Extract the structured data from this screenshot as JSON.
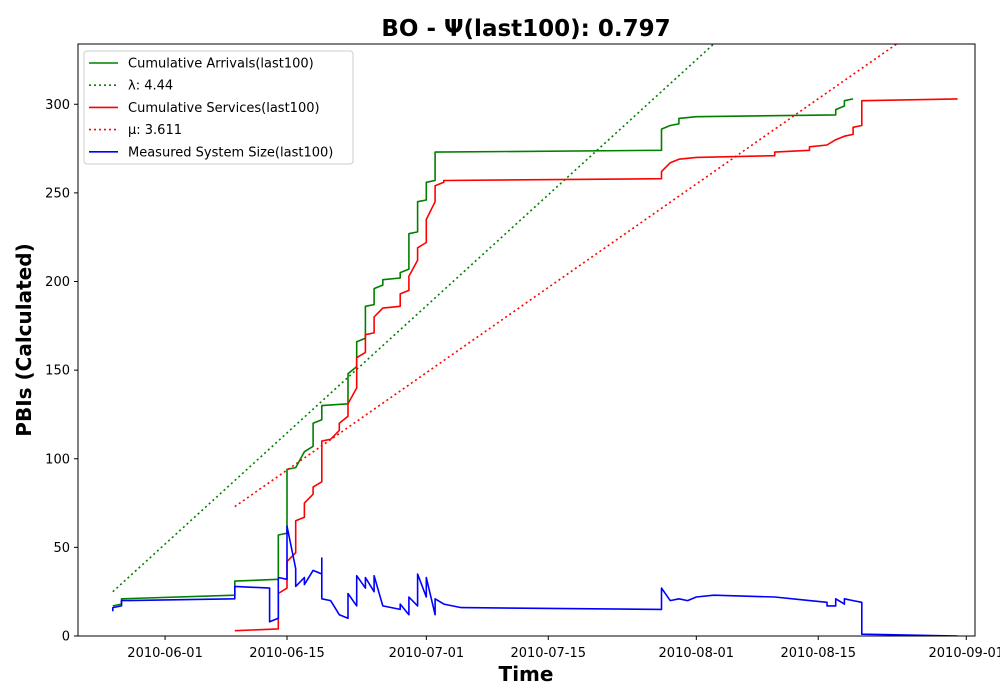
{
  "chart_data": {
    "type": "line",
    "title": "BO -  Ψ(last100): 0.797",
    "xlabel": "Time",
    "ylabel": "PBIs (Calculated)",
    "xlim": [
      "2010-05-22",
      "2010-09-02"
    ],
    "ylim": [
      0,
      334
    ],
    "x_ticks": [
      "2010-06-01",
      "2010-06-15",
      "2010-07-01",
      "2010-07-15",
      "2010-08-01",
      "2010-08-15",
      "2010-09-01"
    ],
    "y_ticks": [
      0,
      50,
      100,
      150,
      200,
      250,
      300
    ],
    "grid": false,
    "legend_position": "top-left",
    "series": [
      {
        "name": "Cumulative Arrivals(last100)",
        "color": "#008000",
        "style": "solid",
        "points": [
          [
            "2010-05-26",
            17
          ],
          [
            "2010-05-27",
            18
          ],
          [
            "2010-05-27",
            21
          ],
          [
            "2010-06-09",
            23
          ],
          [
            "2010-06-09",
            31
          ],
          [
            "2010-06-14",
            32
          ],
          [
            "2010-06-14",
            57
          ],
          [
            "2010-06-15",
            58
          ],
          [
            "2010-06-15",
            94
          ],
          [
            "2010-06-16",
            95
          ],
          [
            "2010-06-17",
            104
          ],
          [
            "2010-06-18",
            107
          ],
          [
            "2010-06-18",
            120
          ],
          [
            "2010-06-19",
            122
          ],
          [
            "2010-06-19",
            130
          ],
          [
            "2010-06-22",
            131
          ],
          [
            "2010-06-22",
            148
          ],
          [
            "2010-06-23",
            152
          ],
          [
            "2010-06-23",
            166
          ],
          [
            "2010-06-24",
            168
          ],
          [
            "2010-06-24",
            186
          ],
          [
            "2010-06-25",
            187
          ],
          [
            "2010-06-25",
            196
          ],
          [
            "2010-06-26",
            198
          ],
          [
            "2010-06-26",
            201
          ],
          [
            "2010-06-28",
            202
          ],
          [
            "2010-06-28",
            205
          ],
          [
            "2010-06-29",
            207
          ],
          [
            "2010-06-29",
            227
          ],
          [
            "2010-06-30",
            228
          ],
          [
            "2010-06-30",
            245
          ],
          [
            "2010-07-01",
            246
          ],
          [
            "2010-07-01",
            256
          ],
          [
            "2010-07-02",
            257
          ],
          [
            "2010-07-02",
            273
          ],
          [
            "2010-07-28",
            274
          ],
          [
            "2010-07-28",
            286
          ],
          [
            "2010-07-29",
            288
          ],
          [
            "2010-07-30",
            289
          ],
          [
            "2010-07-30",
            292
          ],
          [
            "2010-08-01",
            293
          ],
          [
            "2010-08-17",
            294
          ],
          [
            "2010-08-17",
            297
          ],
          [
            "2010-08-18",
            299
          ],
          [
            "2010-08-18",
            302
          ],
          [
            "2010-08-19",
            303
          ]
        ]
      },
      {
        "name": "λ: 4.44",
        "color": "#008000",
        "style": "dotted",
        "points": [
          [
            "2010-05-26",
            25
          ],
          [
            "2010-08-03",
            334
          ]
        ]
      },
      {
        "name": "Cumulative Services(last100)",
        "color": "#ff0000",
        "style": "solid",
        "points": [
          [
            "2010-06-09",
            3
          ],
          [
            "2010-06-14",
            4
          ],
          [
            "2010-06-14",
            24
          ],
          [
            "2010-06-15",
            27
          ],
          [
            "2010-06-15",
            42
          ],
          [
            "2010-06-16",
            47
          ],
          [
            "2010-06-16",
            65
          ],
          [
            "2010-06-17",
            67
          ],
          [
            "2010-06-17",
            75
          ],
          [
            "2010-06-18",
            80
          ],
          [
            "2010-06-18",
            84
          ],
          [
            "2010-06-19",
            87
          ],
          [
            "2010-06-19",
            110
          ],
          [
            "2010-06-20",
            111
          ],
          [
            "2010-06-21",
            116
          ],
          [
            "2010-06-21",
            120
          ],
          [
            "2010-06-22",
            124
          ],
          [
            "2010-06-22",
            131
          ],
          [
            "2010-06-23",
            140
          ],
          [
            "2010-06-23",
            157
          ],
          [
            "2010-06-24",
            160
          ],
          [
            "2010-06-24",
            170
          ],
          [
            "2010-06-25",
            171
          ],
          [
            "2010-06-25",
            180
          ],
          [
            "2010-06-26",
            185
          ],
          [
            "2010-06-28",
            186
          ],
          [
            "2010-06-28",
            193
          ],
          [
            "2010-06-29",
            195
          ],
          [
            "2010-06-29",
            203
          ],
          [
            "2010-06-30",
            212
          ],
          [
            "2010-06-30",
            219
          ],
          [
            "2010-07-01",
            222
          ],
          [
            "2010-07-01",
            235
          ],
          [
            "2010-07-02",
            245
          ],
          [
            "2010-07-02",
            254
          ],
          [
            "2010-07-03",
            256
          ],
          [
            "2010-07-03",
            257
          ],
          [
            "2010-07-28",
            258
          ],
          [
            "2010-07-28",
            262
          ],
          [
            "2010-07-29",
            267
          ],
          [
            "2010-07-30",
            269
          ],
          [
            "2010-08-01",
            270
          ],
          [
            "2010-08-10",
            271
          ],
          [
            "2010-08-10",
            273
          ],
          [
            "2010-08-14",
            274
          ],
          [
            "2010-08-14",
            276
          ],
          [
            "2010-08-16",
            277
          ],
          [
            "2010-08-17",
            280
          ],
          [
            "2010-08-18",
            282
          ],
          [
            "2010-08-19",
            283
          ],
          [
            "2010-08-19",
            287
          ],
          [
            "2010-08-20",
            288
          ],
          [
            "2010-08-20",
            302
          ],
          [
            "2010-08-31",
            303
          ]
        ]
      },
      {
        "name": "μ: 3.611",
        "color": "#ff0000",
        "style": "dotted",
        "points": [
          [
            "2010-06-09",
            73
          ],
          [
            "2010-08-24",
            334
          ]
        ]
      },
      {
        "name": "Measured System Size(last100)",
        "color": "#0000ff",
        "style": "solid",
        "points": [
          [
            "2010-05-26",
            14
          ],
          [
            "2010-05-26",
            16
          ],
          [
            "2010-05-27",
            17
          ],
          [
            "2010-05-27",
            20
          ],
          [
            "2010-06-09",
            21
          ],
          [
            "2010-06-09",
            28
          ],
          [
            "2010-06-13",
            27
          ],
          [
            "2010-06-13",
            8
          ],
          [
            "2010-06-14",
            10
          ],
          [
            "2010-06-14",
            33
          ],
          [
            "2010-06-15",
            32
          ],
          [
            "2010-06-15",
            62
          ],
          [
            "2010-06-16",
            38
          ],
          [
            "2010-06-16",
            28
          ],
          [
            "2010-06-17",
            33
          ],
          [
            "2010-06-17",
            29
          ],
          [
            "2010-06-18",
            37
          ],
          [
            "2010-06-19",
            35
          ],
          [
            "2010-06-19",
            44
          ],
          [
            "2010-06-19",
            21
          ],
          [
            "2010-06-20",
            20
          ],
          [
            "2010-06-21",
            12
          ],
          [
            "2010-06-22",
            10
          ],
          [
            "2010-06-22",
            24
          ],
          [
            "2010-06-23",
            17
          ],
          [
            "2010-06-23",
            34
          ],
          [
            "2010-06-24",
            27
          ],
          [
            "2010-06-24",
            33
          ],
          [
            "2010-06-25",
            25
          ],
          [
            "2010-06-25",
            34
          ],
          [
            "2010-06-26",
            17
          ],
          [
            "2010-06-27",
            16
          ],
          [
            "2010-06-28",
            15
          ],
          [
            "2010-06-28",
            18
          ],
          [
            "2010-06-29",
            12
          ],
          [
            "2010-06-29",
            22
          ],
          [
            "2010-06-30",
            17
          ],
          [
            "2010-06-30",
            35
          ],
          [
            "2010-07-01",
            22
          ],
          [
            "2010-07-01",
            33
          ],
          [
            "2010-07-02",
            12
          ],
          [
            "2010-07-02",
            21
          ],
          [
            "2010-07-03",
            18
          ],
          [
            "2010-07-05",
            16
          ],
          [
            "2010-07-28",
            15
          ],
          [
            "2010-07-28",
            27
          ],
          [
            "2010-07-29",
            20
          ],
          [
            "2010-07-30",
            21
          ],
          [
            "2010-07-31",
            20
          ],
          [
            "2010-08-01",
            22
          ],
          [
            "2010-08-03",
            23
          ],
          [
            "2010-08-10",
            22
          ],
          [
            "2010-08-14",
            20
          ],
          [
            "2010-08-16",
            19
          ],
          [
            "2010-08-16",
            17
          ],
          [
            "2010-08-17",
            17
          ],
          [
            "2010-08-17",
            21
          ],
          [
            "2010-08-18",
            18
          ],
          [
            "2010-08-18",
            21
          ],
          [
            "2010-08-19",
            20
          ],
          [
            "2010-08-20",
            19
          ],
          [
            "2010-08-20",
            1
          ],
          [
            "2010-08-31",
            0
          ]
        ]
      }
    ]
  }
}
